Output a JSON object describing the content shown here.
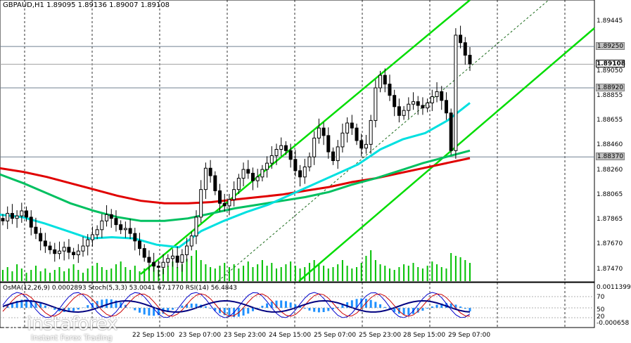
{
  "title": "GBPAUD,H1  1.89095 1.89136 1.89007 1.89108",
  "osc_label": "OsMA(12,26,9) 0.0002893  Stoch(5,3,3) 53.0041 67.1770  RSI(14) 56.4843",
  "brand": {
    "name": "instaforex",
    "tagline": "Instant Forex Trading"
  },
  "colors": {
    "candles": "#000000",
    "ma_red": "#e00000",
    "ma_green": "#00c060",
    "ma_cyan": "#00e0e0",
    "channel": "#00dd00",
    "volume": "#00c000",
    "osma": "#1e90ff",
    "stoch_main": "#0000cc",
    "stoch_signal": "#cc0000",
    "rsi": "#000080"
  },
  "chart_data": {
    "type": "candlestick",
    "symbol": "GBPAUD",
    "timeframe": "H1",
    "ohlc": {
      "open": 1.89095,
      "high": 1.89136,
      "low": 1.89007,
      "close": 1.89108
    },
    "y_ticks": [
      "1.89445",
      "1.89050",
      "1.88855",
      "1.88655",
      "1.88460",
      "1.88260",
      "1.88065",
      "1.87865",
      "1.87670",
      "1.87470"
    ],
    "price_levels": [
      {
        "label": "1.89250",
        "value": 1.8925
      },
      {
        "label": "1.89108",
        "value": 1.89108,
        "current": true
      },
      {
        "label": "1.88920",
        "value": 1.8892
      },
      {
        "label": "1.88370",
        "value": 1.8837
      }
    ],
    "x_ticks": [
      "22 Sep 15:00",
      "23 Sep 07:00",
      "23 Sep 23:00",
      "24 Sep 15:00",
      "25 Sep 07:00",
      "25 Sep 23:00",
      "28 Sep 15:00",
      "29 Sep 07:00"
    ],
    "ylim": [
      1.8738,
      1.8962
    ],
    "close_series": [
      1.8786,
      1.8792,
      1.8788,
      1.879,
      1.8794,
      1.8789,
      1.8781,
      1.8776,
      1.877,
      1.8766,
      1.8763,
      1.876,
      1.8762,
      1.8765,
      1.8761,
      1.8759,
      1.8762,
      1.8766,
      1.8771,
      1.8775,
      1.8779,
      1.8786,
      1.8791,
      1.8788,
      1.8783,
      1.8779,
      1.878,
      1.8776,
      1.877,
      1.8764,
      1.8757,
      1.8753,
      1.875,
      1.8749,
      1.8753,
      1.8756,
      1.8758,
      1.8753,
      1.8759,
      1.8766,
      1.8774,
      1.8789,
      1.8811,
      1.8828,
      1.8822,
      1.881,
      1.88,
      1.8798,
      1.8803,
      1.8811,
      1.882,
      1.8827,
      1.8824,
      1.8818,
      1.8821,
      1.8827,
      1.8832,
      1.8838,
      1.8843,
      1.8846,
      1.8842,
      1.8835,
      1.8826,
      1.8821,
      1.8829,
      1.8837,
      1.8852,
      1.886,
      1.8854,
      1.8841,
      1.8834,
      1.8845,
      1.8856,
      1.8864,
      1.886,
      1.885,
      1.8844,
      1.8847,
      1.8866,
      1.8892,
      1.8902,
      1.8895,
      1.8886,
      1.8877,
      1.887,
      1.8874,
      1.8879,
      1.8881,
      1.8878,
      1.8876,
      1.888,
      1.8885,
      1.8889,
      1.8882,
      1.8872,
      1.8842,
      1.8934,
      1.8928,
      1.8918,
      1.8911
    ],
    "series": [
      {
        "name": "MA red",
        "values": [
          1.8828,
          1.8825,
          1.8821,
          1.8816,
          1.8811,
          1.8806,
          1.8802,
          1.88,
          1.88,
          1.8801,
          1.8803,
          1.8805,
          1.8807,
          1.881,
          1.8813,
          1.8817,
          1.882,
          1.8824,
          1.8828,
          1.8832,
          1.8836
        ]
      },
      {
        "name": "MA green",
        "values": [
          1.8823,
          1.8816,
          1.8808,
          1.88,
          1.8794,
          1.8789,
          1.8786,
          1.8786,
          1.8788,
          1.8792,
          1.8796,
          1.8799,
          1.8802,
          1.8805,
          1.8809,
          1.8815,
          1.882,
          1.8826,
          1.8832,
          1.8837,
          1.8842
        ]
      },
      {
        "name": "MA cyan",
        "values": [
          1.8791,
          1.8789,
          1.8784,
          1.8778,
          1.8772,
          1.8773,
          1.8772,
          1.8767,
          1.8765,
          1.8778,
          1.8786,
          1.8793,
          1.8799,
          1.8807,
          1.8815,
          1.8823,
          1.8831,
          1.8843,
          1.8851,
          1.8856,
          1.8866,
          1.888
        ]
      }
    ],
    "volumes": [
      8,
      10,
      7,
      12,
      9,
      6,
      8,
      11,
      7,
      9,
      6,
      8,
      10,
      7,
      9,
      12,
      8,
      6,
      9,
      11,
      13,
      10,
      8,
      9,
      12,
      14,
      10,
      8,
      11,
      7,
      9,
      10,
      12,
      8,
      9,
      11,
      14,
      10,
      12,
      16,
      18,
      22,
      15,
      12,
      10,
      9,
      11,
      13,
      10,
      12,
      9,
      11,
      14,
      10,
      12,
      15,
      11,
      13,
      9,
      10,
      12,
      14,
      11,
      9,
      10,
      13,
      15,
      12,
      11,
      9,
      10,
      12,
      15,
      11,
      9,
      10,
      13,
      18,
      22,
      15,
      12,
      11,
      9,
      8,
      10,
      12,
      11,
      13,
      10,
      9,
      11,
      14,
      12,
      10,
      9,
      20,
      18,
      17,
      15,
      13
    ],
    "oscillator": {
      "labels": [
        "0.0011399",
        "70",
        "50",
        "20",
        "-0.000658"
      ],
      "osma": 0.0002893,
      "stoch_main": 53.0041,
      "stoch_signal": 67.177,
      "rsi": 56.4843
    }
  }
}
